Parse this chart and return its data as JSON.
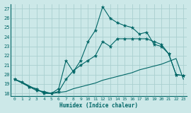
{
  "xlabel": "Humidex (Indice chaleur)",
  "bg_color": "#cce8e8",
  "grid_color": "#aacfcf",
  "line_color": "#006666",
  "xlim": [
    -0.5,
    23.5
  ],
  "ylim": [
    17.7,
    27.5
  ],
  "xticks": [
    0,
    1,
    2,
    3,
    4,
    5,
    6,
    7,
    8,
    9,
    10,
    11,
    12,
    13,
    14,
    15,
    16,
    17,
    18,
    19,
    20,
    21,
    22,
    23
  ],
  "yticks": [
    18,
    19,
    20,
    21,
    22,
    23,
    24,
    25,
    26,
    27
  ],
  "line1_x": [
    0,
    1,
    2,
    3,
    4,
    5,
    6,
    7,
    8,
    9,
    10,
    11,
    12,
    13,
    14,
    15,
    16,
    17,
    18,
    19,
    20,
    21,
    22,
    23
  ],
  "line1_y": [
    19.5,
    19.2,
    18.7,
    18.3,
    18.2,
    18.0,
    18.5,
    21.5,
    20.3,
    21.5,
    23.5,
    24.7,
    27.2,
    26.0,
    25.5,
    25.2,
    25.0,
    24.3,
    24.5,
    23.2,
    23.0,
    22.2,
    20.0,
    19.9
  ],
  "line2_x": [
    0,
    2,
    3,
    4,
    5,
    6,
    7,
    8,
    9,
    10,
    11,
    12,
    13,
    14,
    15,
    16,
    17,
    18,
    19,
    20,
    21,
    22,
    23
  ],
  "line2_y": [
    19.5,
    18.7,
    18.5,
    18.0,
    18.0,
    18.2,
    19.5,
    20.4,
    21.0,
    21.5,
    22.0,
    23.5,
    23.0,
    23.8,
    23.8,
    23.8,
    23.8,
    23.8,
    23.5,
    23.2,
    22.2,
    20.0,
    19.9
  ],
  "line3_x": [
    0,
    1,
    2,
    3,
    4,
    5,
    6,
    7,
    8,
    9,
    10,
    11,
    12,
    13,
    14,
    15,
    16,
    17,
    18,
    19,
    20,
    21,
    22,
    23
  ],
  "line3_y": [
    19.5,
    19.2,
    18.8,
    18.4,
    18.1,
    18.0,
    18.1,
    18.2,
    18.5,
    18.7,
    18.9,
    19.1,
    19.4,
    19.6,
    19.8,
    20.0,
    20.2,
    20.5,
    20.7,
    20.9,
    21.1,
    21.4,
    21.7,
    19.5
  ]
}
